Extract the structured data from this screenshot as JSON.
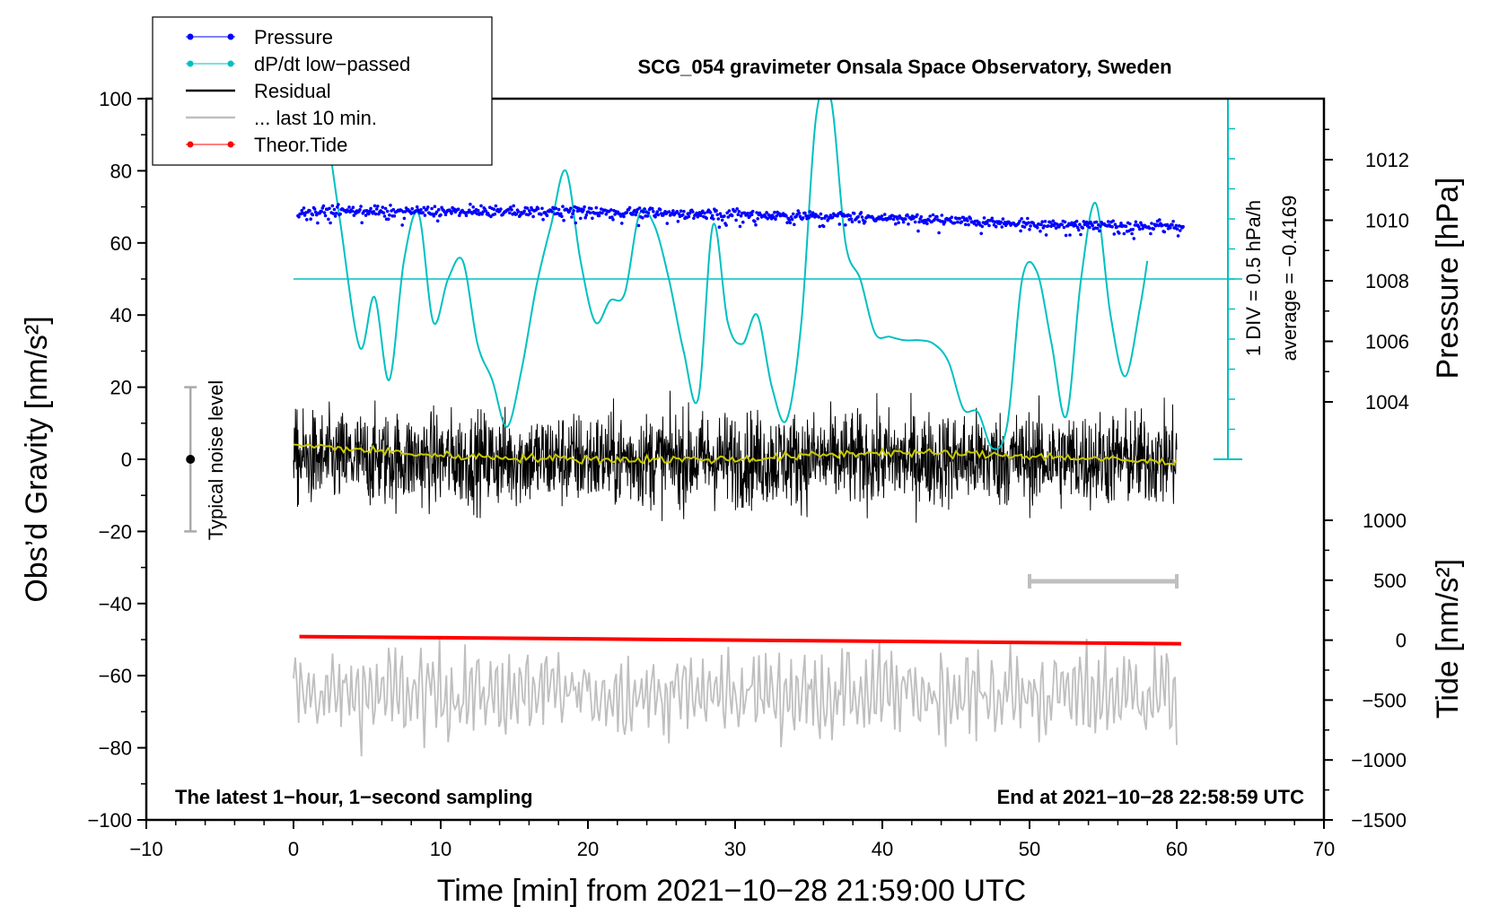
{
  "chart_data": {
    "type": "line",
    "title": "SCG_054 gravimeter Onsala Space Observatory, Sweden",
    "xlabel": "Time [min] from 2021−10−28 21:59:00 UTC",
    "ylabel_left": "Obs’d Gravity [nm/s²]",
    "ylabel_right_pressure": "Pressure [hPa]",
    "ylabel_right_tide": "Tide [nm/s²]",
    "xlim": [
      -10,
      70
    ],
    "ylim": [
      -100,
      100
    ],
    "pressure_ylim": [
      1002,
      1014
    ],
    "tide_ylim": [
      -1500,
      1000
    ],
    "x_ticks": [
      "−10",
      "0",
      "10",
      "20",
      "30",
      "40",
      "50",
      "60",
      "70"
    ],
    "y_ticks": [
      "100",
      "80",
      "60",
      "40",
      "20",
      "0",
      "−20",
      "−40",
      "−60",
      "−80",
      "−100"
    ],
    "pressure_ticks": [
      "1012",
      "1010",
      "1008",
      "1006",
      "1004"
    ],
    "tide_ticks": [
      "1000",
      "500",
      "0",
      "−500",
      "−1000",
      "−1500"
    ],
    "legend": [
      {
        "label": "Pressure",
        "color": "#0000ff",
        "marker": "dot"
      },
      {
        "label": "dP/dt low−passed",
        "color": "#00c0c0",
        "marker": "dot"
      },
      {
        "label": "Residual",
        "color": "#000000",
        "marker": "line"
      },
      {
        "label": "... last 10 min.",
        "color": "#bfbfbf",
        "marker": "line"
      },
      {
        "label": "Theor.Tide",
        "color": "#ff0000",
        "marker": "dot"
      }
    ],
    "legend_position": "top-left",
    "annotations": {
      "bottom_left": "The latest 1−hour, 1−second sampling",
      "bottom_right": "End at 2021−10−28 22:58:59 UTC",
      "dpdt_div": "1 DIV = 0.5 hPa/h",
      "dpdt_avg": "average = −0.4169",
      "noise": "Typical noise level"
    },
    "series": [
      {
        "name": "Pressure",
        "axis": "pressure",
        "x": [
          0,
          10,
          20,
          30,
          40,
          50,
          60
        ],
        "values": [
          1010.3,
          1010.3,
          1010.3,
          1010.2,
          1010.1,
          1009.9,
          1009.8
        ]
      },
      {
        "name": "dP/dt low−passed",
        "axis": "gravity",
        "x": [
          2.5,
          3.2,
          4.5,
          5.5,
          6.5,
          7.5,
          8.5,
          9.5,
          10.5,
          11.5,
          12.5,
          13.5,
          14.5,
          15.5,
          16.5,
          17.5,
          18.5,
          19.5,
          20.5,
          21.5,
          22.5,
          23.5,
          24.5,
          25.5,
          26.5,
          27.5,
          28.5,
          29.5,
          30.5,
          31.5,
          32.5,
          33.5,
          34.5,
          35.5,
          36.5,
          37.5,
          38.5,
          39.5,
          40.5,
          41.5,
          42.5,
          43.5,
          44.5,
          45.5,
          46.5,
          47.5,
          48.5,
          49.5,
          50.5,
          51.5,
          52.5,
          53.5,
          54.5,
          55.5,
          56.5,
          57.5,
          58
        ],
        "values": [
          85,
          65,
          31,
          45,
          22,
          55,
          68,
          38,
          50,
          55,
          32,
          22,
          9,
          25,
          48,
          65,
          80,
          55,
          38,
          44,
          46,
          68,
          65,
          50,
          30,
          17,
          65,
          38,
          32,
          40,
          20,
          11,
          38,
          95,
          100,
          60,
          50,
          35,
          34,
          33,
          33,
          32,
          27,
          14,
          13,
          3,
          10,
          50,
          52,
          32,
          12,
          50,
          71,
          40,
          23,
          42,
          55
        ]
      },
      {
        "name": "Residual",
        "axis": "gravity",
        "x_range": [
          0,
          60
        ],
        "mean": 0,
        "spread": 12
      },
      {
        "name": "Residual mean",
        "axis": "gravity",
        "color": "#c8c800",
        "x": [
          0,
          10,
          20,
          30,
          40,
          50,
          60
        ],
        "values": [
          4,
          1,
          0,
          0,
          2,
          1,
          -1
        ]
      },
      {
        "name": "... last 10 min.",
        "axis": "gravity",
        "x_range": [
          0,
          60
        ],
        "mean": -65,
        "spread": 12
      },
      {
        "name": "Theor.Tide",
        "axis": "tide",
        "x": [
          0,
          60
        ],
        "values": [
          30,
          -30
        ]
      }
    ],
    "noise_bar": {
      "x": -7,
      "min": -20,
      "max": 20,
      "center": 0
    },
    "dpdt_zero_line_y": 50,
    "window_bar_x": [
      50,
      60
    ]
  }
}
